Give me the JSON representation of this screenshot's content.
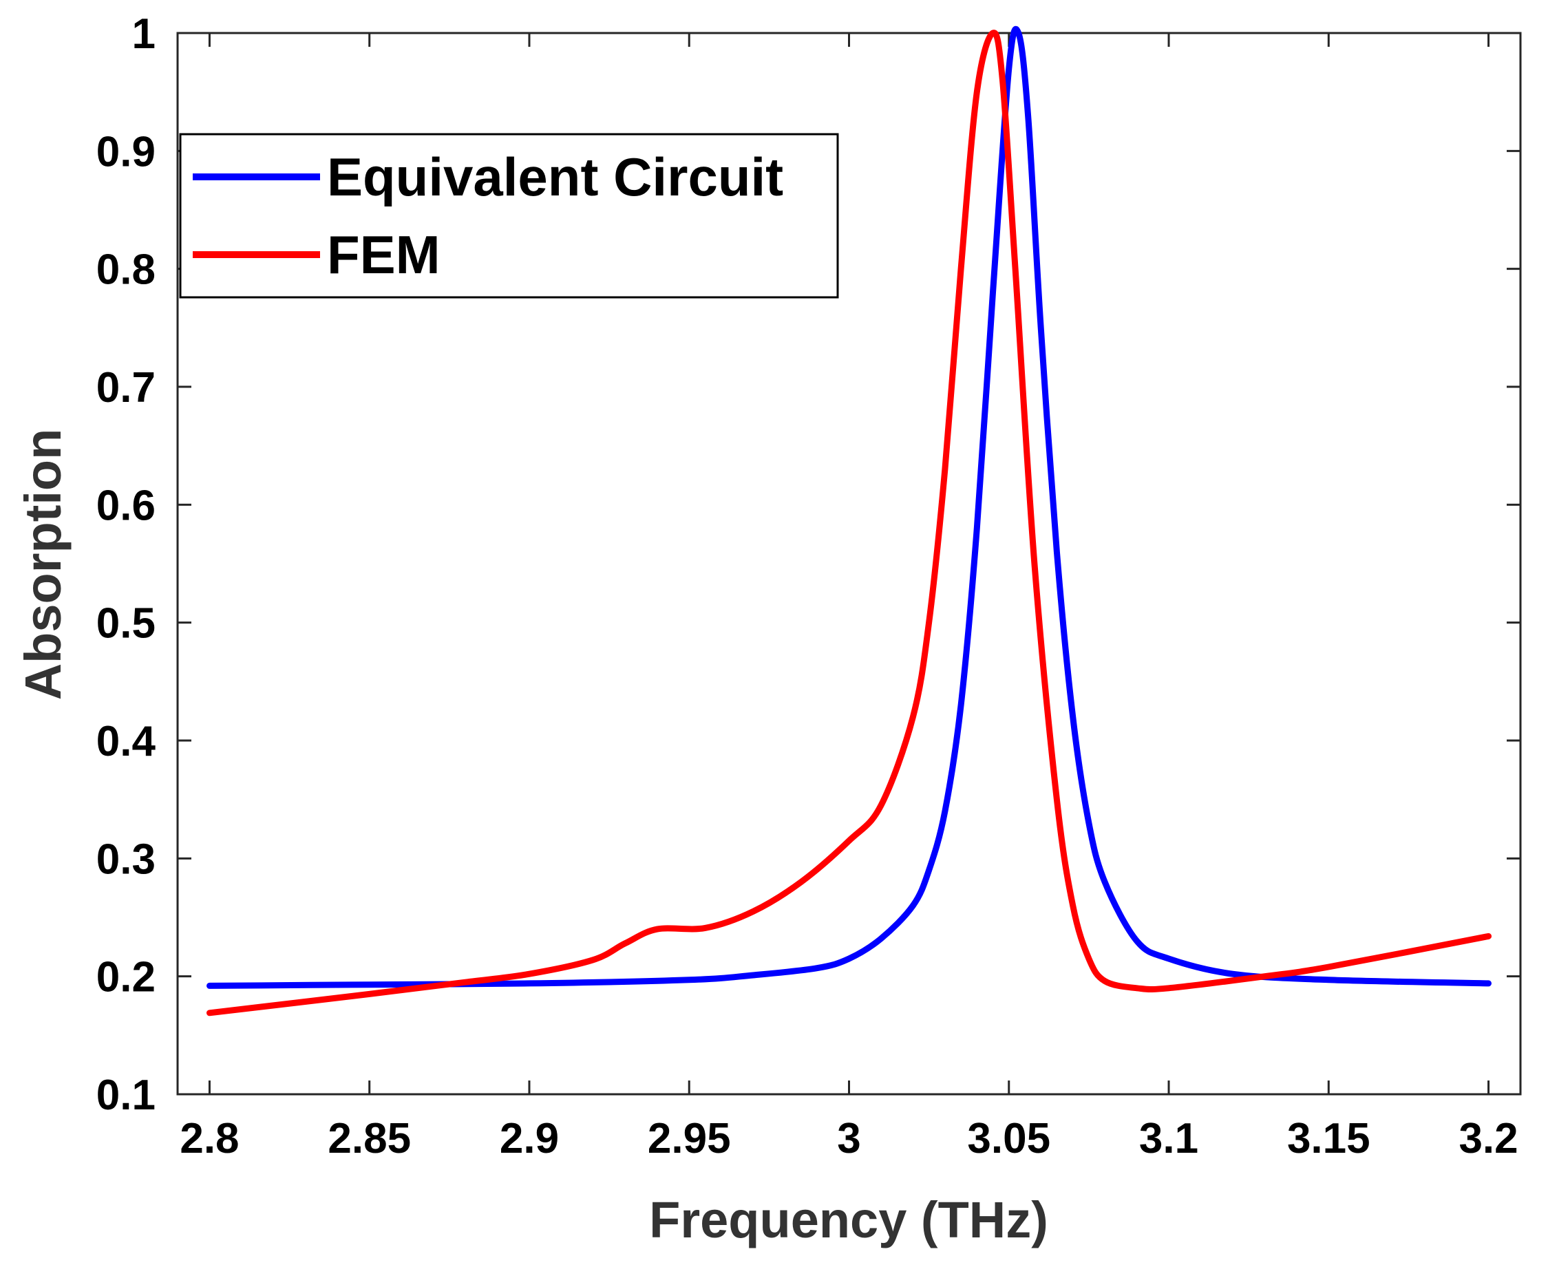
{
  "chart_data": {
    "type": "line",
    "title": "",
    "xlabel": "Frequency (THz)",
    "ylabel": "Absorption",
    "xlim": [
      2.79,
      3.21
    ],
    "ylim": [
      0.1,
      1.0
    ],
    "x_ticks": [
      2.8,
      2.85,
      2.9,
      2.95,
      3,
      3.05,
      3.1,
      3.15,
      3.2
    ],
    "x_tick_labels": [
      "2.8",
      "2.85",
      "2.9",
      "2.95",
      "3",
      "3.05",
      "3.1",
      "3.15",
      "3.2"
    ],
    "y_ticks": [
      0.1,
      0.2,
      0.3,
      0.4,
      0.5,
      0.6,
      0.7,
      0.8,
      0.9,
      1.0
    ],
    "y_tick_labels": [
      "0.1",
      "0.2",
      "0.3",
      "0.4",
      "0.5",
      "0.6",
      "0.7",
      "0.8",
      "0.9",
      "1"
    ],
    "grid": false,
    "legend_position": "top-left",
    "series": [
      {
        "name": "Equivalent Circuit",
        "color": "#0000ff",
        "x": [
          2.8,
          2.85,
          2.9,
          2.95,
          2.97,
          2.99,
          3.0,
          3.01,
          3.02,
          3.025,
          3.03,
          3.035,
          3.04,
          3.045,
          3.05,
          3.053,
          3.056,
          3.06,
          3.065,
          3.07,
          3.075,
          3.08,
          3.09,
          3.1,
          3.12,
          3.15,
          3.2
        ],
        "values": [
          0.192,
          0.193,
          0.194,
          0.197,
          0.201,
          0.207,
          0.215,
          0.232,
          0.26,
          0.29,
          0.34,
          0.43,
          0.58,
          0.78,
          0.97,
          1.0,
          0.93,
          0.75,
          0.56,
          0.42,
          0.33,
          0.28,
          0.23,
          0.215,
          0.202,
          0.197,
          0.194
        ]
      },
      {
        "name": "FEM",
        "color": "#ff0000",
        "x": [
          2.8,
          2.85,
          2.88,
          2.9,
          2.92,
          2.93,
          2.94,
          2.955,
          2.97,
          2.985,
          3.0,
          3.01,
          3.02,
          3.025,
          3.03,
          3.035,
          3.04,
          3.045,
          3.048,
          3.052,
          3.058,
          3.065,
          3.07,
          3.075,
          3.08,
          3.09,
          3.1,
          3.13,
          3.15,
          3.2
        ],
        "values": [
          0.169,
          0.185,
          0.195,
          0.202,
          0.214,
          0.228,
          0.24,
          0.241,
          0.255,
          0.28,
          0.315,
          0.345,
          0.42,
          0.5,
          0.63,
          0.8,
          0.95,
          1.0,
          0.96,
          0.8,
          0.55,
          0.35,
          0.26,
          0.215,
          0.196,
          0.19,
          0.19,
          0.2,
          0.208,
          0.234
        ]
      }
    ]
  }
}
